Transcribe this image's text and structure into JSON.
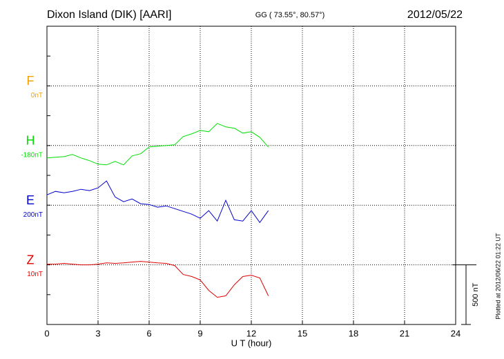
{
  "chart_data": {
    "type": "line",
    "title": "Dixon Island (DIK)  [AARI]",
    "subtitle": "GG ( 73.55°,  80.57°)",
    "date": "2012/05/22",
    "xlabel": "U T (hour)",
    "footnote": "Plotted at 2012/06/22 01:22 UT",
    "xlim": [
      0,
      24
    ],
    "xticks": [
      0,
      3,
      6,
      9,
      12,
      15,
      18,
      21,
      24
    ],
    "grid": true,
    "scale_bar": {
      "value": 500,
      "label": "500 nT"
    },
    "x": [
      0,
      0.5,
      1,
      1.5,
      2,
      2.5,
      3,
      3.5,
      4,
      4.5,
      5,
      5.5,
      6,
      6.5,
      7,
      7.5,
      8,
      8.5,
      9,
      9.5,
      10,
      10.5,
      11,
      11.5,
      12,
      12.5,
      13
    ],
    "series": [
      {
        "name": "F",
        "offset_label": "0nT",
        "color": "#f0a000",
        "values": [
          null,
          null,
          null,
          null,
          null,
          null,
          null,
          null,
          null,
          null,
          null,
          null,
          null,
          null,
          null,
          null,
          null,
          null,
          null,
          null,
          null,
          null,
          null,
          null,
          null,
          null,
          null
        ]
      },
      {
        "name": "H",
        "offset_label": "-180nT",
        "color": "#00e000",
        "values": [
          -104,
          -98,
          -93,
          -75,
          -104,
          -127,
          -156,
          -162,
          -133,
          -162,
          -87,
          -69,
          -12,
          -6,
          0,
          6,
          75,
          98,
          127,
          116,
          185,
          156,
          145,
          104,
          116,
          69,
          -12
        ]
      },
      {
        "name": "E",
        "offset_label": "200nT",
        "color": "#0000cc",
        "values": [
          87,
          116,
          104,
          116,
          133,
          122,
          145,
          203,
          69,
          29,
          52,
          12,
          6,
          -17,
          -6,
          -29,
          -52,
          -75,
          -110,
          -46,
          -133,
          41,
          -122,
          -133,
          -46,
          -145,
          -46
        ]
      },
      {
        "name": "Z",
        "offset_label": "10nT",
        "color": "#dd0000",
        "values": [
          6,
          6,
          12,
          6,
          0,
          0,
          6,
          17,
          12,
          17,
          23,
          29,
          23,
          17,
          12,
          -6,
          -81,
          -98,
          -127,
          -214,
          -272,
          -260,
          -168,
          -98,
          -87,
          -110,
          -260
        ]
      }
    ]
  }
}
